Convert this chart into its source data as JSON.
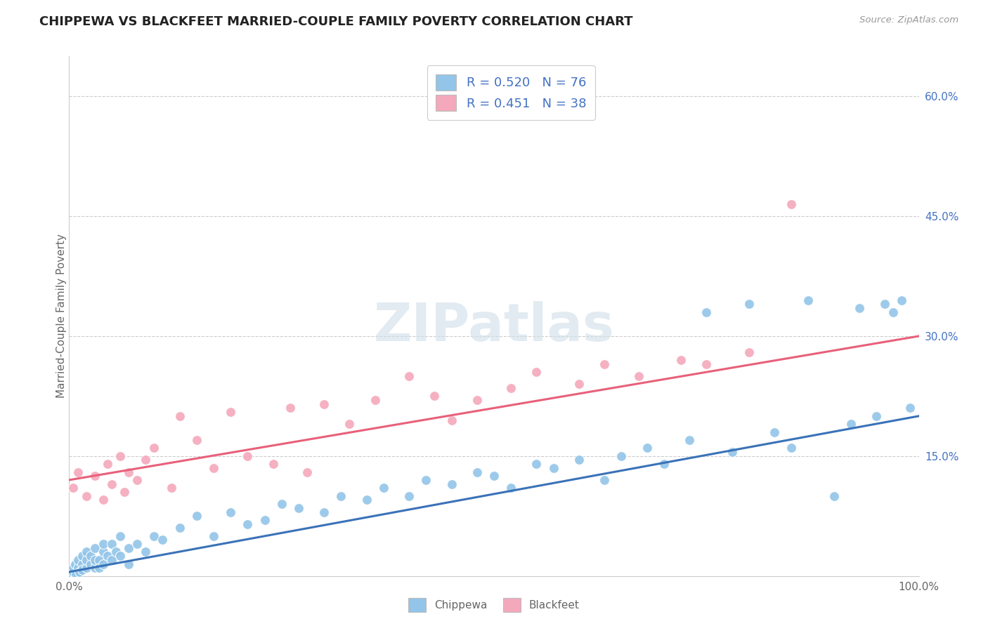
{
  "title": "CHIPPEWA VS BLACKFEET MARRIED-COUPLE FAMILY POVERTY CORRELATION CHART",
  "source": "Source: ZipAtlas.com",
  "ylabel": "Married-Couple Family Poverty",
  "xlim_pct": [
    0,
    100
  ],
  "ylim_pct": [
    0,
    65
  ],
  "chippewa_color": "#92C5E8",
  "blackfeet_color": "#F4A8BC",
  "chippewa_line_color": "#3A72B8",
  "blackfeet_line_color": "#E8607A",
  "R_chippewa": 0.52,
  "N_chippewa": 76,
  "R_blackfeet": 0.451,
  "N_blackfeet": 38,
  "watermark": "ZIPatlas",
  "background_color": "#ffffff",
  "grid_color": "#cccccc",
  "blue_text_color": "#4472C4",
  "axis_label_color": "#666666",
  "title_color": "#222222",
  "source_color": "#999999",
  "chippewa_line_intercept": 0.5,
  "chippewa_line_slope": 0.195,
  "blackfeet_line_intercept": 12.0,
  "blackfeet_line_slope": 0.18,
  "chip_x": [
    0.3,
    0.5,
    0.5,
    0.7,
    0.8,
    1.0,
    1.0,
    1.2,
    1.5,
    1.5,
    1.5,
    2.0,
    2.0,
    2.0,
    2.5,
    2.5,
    3.0,
    3.0,
    3.0,
    3.5,
    3.5,
    4.0,
    4.0,
    4.0,
    4.5,
    5.0,
    5.0,
    5.5,
    6.0,
    6.0,
    7.0,
    7.0,
    8.0,
    9.0,
    10.0,
    11.0,
    13.0,
    15.0,
    17.0,
    19.0,
    21.0,
    23.0,
    25.0,
    27.0,
    30.0,
    32.0,
    35.0,
    37.0,
    40.0,
    42.0,
    45.0,
    48.0,
    50.0,
    52.0,
    55.0,
    57.0,
    60.0,
    63.0,
    65.0,
    68.0,
    70.0,
    73.0,
    75.0,
    78.0,
    80.0,
    83.0,
    85.0,
    87.0,
    90.0,
    92.0,
    93.0,
    95.0,
    96.0,
    97.0,
    98.0,
    99.0
  ],
  "chip_y": [
    0.3,
    0.5,
    1.0,
    1.5,
    0.2,
    1.0,
    2.0,
    0.5,
    1.5,
    2.5,
    0.8,
    1.0,
    2.0,
    3.0,
    1.5,
    2.5,
    1.0,
    2.0,
    3.5,
    2.0,
    1.0,
    1.5,
    3.0,
    4.0,
    2.5,
    2.0,
    4.0,
    3.0,
    2.5,
    5.0,
    3.5,
    1.5,
    4.0,
    3.0,
    5.0,
    4.5,
    6.0,
    7.5,
    5.0,
    8.0,
    6.5,
    7.0,
    9.0,
    8.5,
    8.0,
    10.0,
    9.5,
    11.0,
    10.0,
    12.0,
    11.5,
    13.0,
    12.5,
    11.0,
    14.0,
    13.5,
    14.5,
    12.0,
    15.0,
    16.0,
    14.0,
    17.0,
    33.0,
    15.5,
    34.0,
    18.0,
    16.0,
    34.5,
    10.0,
    19.0,
    33.5,
    20.0,
    34.0,
    33.0,
    34.5,
    21.0
  ],
  "black_x": [
    0.5,
    1.0,
    2.0,
    3.0,
    4.0,
    4.5,
    5.0,
    6.0,
    6.5,
    7.0,
    8.0,
    9.0,
    10.0,
    12.0,
    13.0,
    15.0,
    17.0,
    19.0,
    21.0,
    24.0,
    26.0,
    28.0,
    30.0,
    33.0,
    36.0,
    40.0,
    43.0,
    45.0,
    48.0,
    52.0,
    55.0,
    60.0,
    63.0,
    67.0,
    72.0,
    75.0,
    80.0,
    85.0
  ],
  "black_y": [
    11.0,
    13.0,
    10.0,
    12.5,
    9.5,
    14.0,
    11.5,
    15.0,
    10.5,
    13.0,
    12.0,
    14.5,
    16.0,
    11.0,
    20.0,
    17.0,
    13.5,
    20.5,
    15.0,
    14.0,
    21.0,
    13.0,
    21.5,
    19.0,
    22.0,
    25.0,
    22.5,
    19.5,
    22.0,
    23.5,
    25.5,
    24.0,
    26.5,
    25.0,
    27.0,
    26.5,
    28.0,
    46.5
  ]
}
